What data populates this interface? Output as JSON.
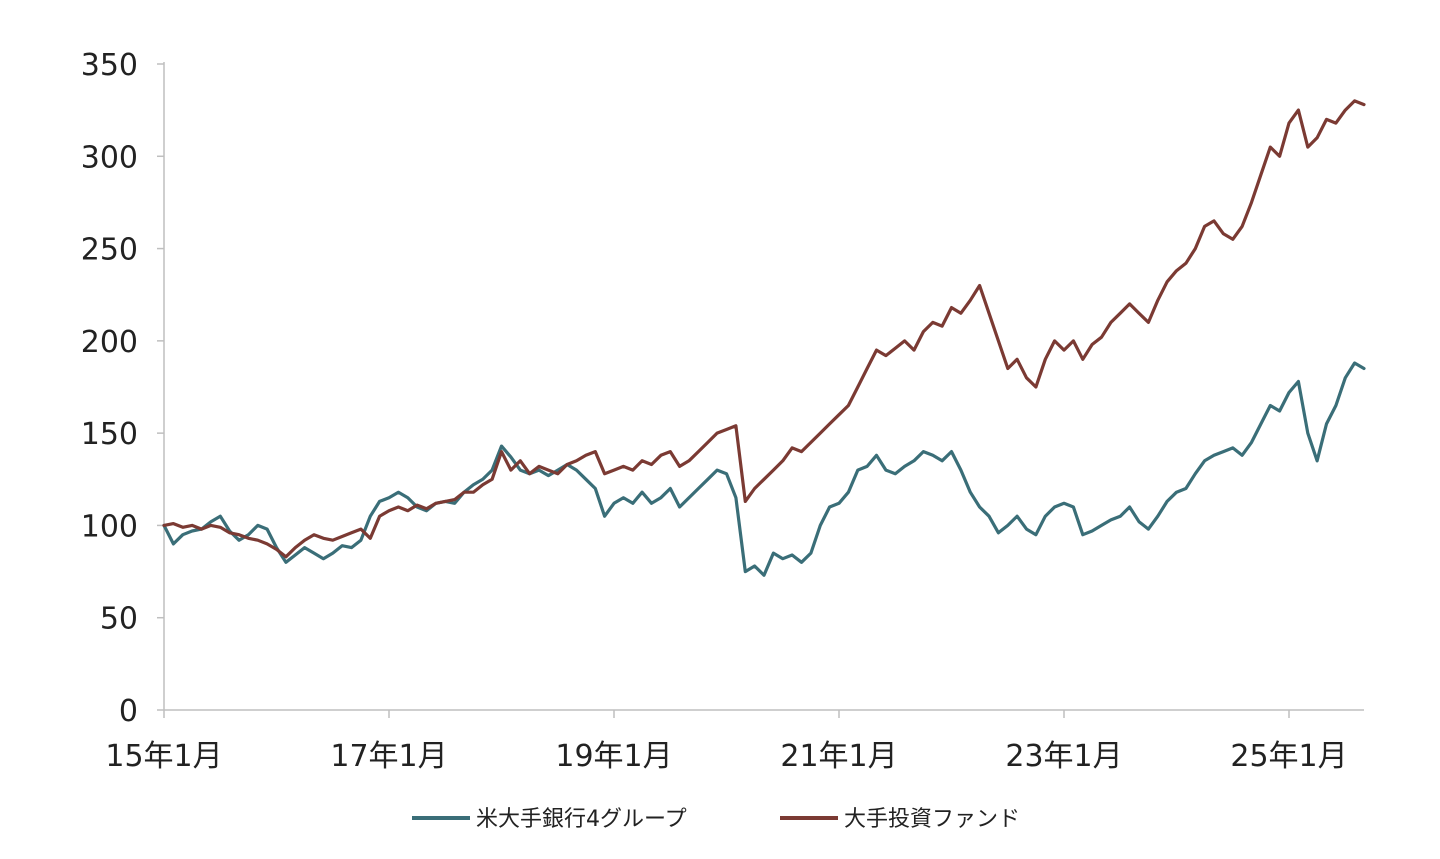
{
  "chart_data": {
    "type": "line",
    "title": "",
    "xlabel": "",
    "ylabel": "",
    "ylim": [
      0,
      350
    ],
    "yticks": [
      0,
      50,
      100,
      150,
      200,
      250,
      300,
      350
    ],
    "xlim": [
      "2015-01",
      "2025-09"
    ],
    "xticks": [
      {
        "date": "2015-01",
        "label": "15年1月"
      },
      {
        "date": "2017-01",
        "label": "17年1月"
      },
      {
        "date": "2019-01",
        "label": "19年1月"
      },
      {
        "date": "2021-01",
        "label": "21年1月"
      },
      {
        "date": "2023-01",
        "label": "23年1月"
      },
      {
        "date": "2025-01",
        "label": "25年1月"
      }
    ],
    "grid": false,
    "legend": "bottom",
    "series": [
      {
        "name": "米大手銀行4グループ",
        "color": "#3a6e78",
        "points": [
          [
            "2015-01",
            100
          ],
          [
            "2015-02",
            90
          ],
          [
            "2015-03",
            95
          ],
          [
            "2015-04",
            97
          ],
          [
            "2015-05",
            98
          ],
          [
            "2015-06",
            102
          ],
          [
            "2015-07",
            105
          ],
          [
            "2015-08",
            97
          ],
          [
            "2015-09",
            92
          ],
          [
            "2015-10",
            95
          ],
          [
            "2015-11",
            100
          ],
          [
            "2015-12",
            98
          ],
          [
            "2016-01",
            88
          ],
          [
            "2016-02",
            80
          ],
          [
            "2016-03",
            84
          ],
          [
            "2016-04",
            88
          ],
          [
            "2016-05",
            85
          ],
          [
            "2016-06",
            82
          ],
          [
            "2016-07",
            85
          ],
          [
            "2016-08",
            89
          ],
          [
            "2016-09",
            88
          ],
          [
            "2016-10",
            92
          ],
          [
            "2016-11",
            105
          ],
          [
            "2016-12",
            113
          ],
          [
            "2017-01",
            115
          ],
          [
            "2017-02",
            118
          ],
          [
            "2017-03",
            115
          ],
          [
            "2017-04",
            110
          ],
          [
            "2017-05",
            108
          ],
          [
            "2017-06",
            112
          ],
          [
            "2017-07",
            113
          ],
          [
            "2017-08",
            112
          ],
          [
            "2017-09",
            118
          ],
          [
            "2017-10",
            122
          ],
          [
            "2017-11",
            125
          ],
          [
            "2017-12",
            130
          ],
          [
            "2018-01",
            143
          ],
          [
            "2018-02",
            137
          ],
          [
            "2018-03",
            130
          ],
          [
            "2018-04",
            128
          ],
          [
            "2018-05",
            130
          ],
          [
            "2018-06",
            127
          ],
          [
            "2018-07",
            130
          ],
          [
            "2018-08",
            133
          ],
          [
            "2018-09",
            130
          ],
          [
            "2018-10",
            125
          ],
          [
            "2018-11",
            120
          ],
          [
            "2018-12",
            105
          ],
          [
            "2019-01",
            112
          ],
          [
            "2019-02",
            115
          ],
          [
            "2019-03",
            112
          ],
          [
            "2019-04",
            118
          ],
          [
            "2019-05",
            112
          ],
          [
            "2019-06",
            115
          ],
          [
            "2019-07",
            120
          ],
          [
            "2019-08",
            110
          ],
          [
            "2019-09",
            115
          ],
          [
            "2019-10",
            120
          ],
          [
            "2019-11",
            125
          ],
          [
            "2019-12",
            130
          ],
          [
            "2020-01",
            128
          ],
          [
            "2020-02",
            115
          ],
          [
            "2020-03",
            75
          ],
          [
            "2020-04",
            78
          ],
          [
            "2020-05",
            73
          ],
          [
            "2020-06",
            85
          ],
          [
            "2020-07",
            82
          ],
          [
            "2020-08",
            84
          ],
          [
            "2020-09",
            80
          ],
          [
            "2020-10",
            85
          ],
          [
            "2020-11",
            100
          ],
          [
            "2020-12",
            110
          ],
          [
            "2021-01",
            112
          ],
          [
            "2021-02",
            118
          ],
          [
            "2021-03",
            130
          ],
          [
            "2021-04",
            132
          ],
          [
            "2021-05",
            138
          ],
          [
            "2021-06",
            130
          ],
          [
            "2021-07",
            128
          ],
          [
            "2021-08",
            132
          ],
          [
            "2021-09",
            135
          ],
          [
            "2021-10",
            140
          ],
          [
            "2021-11",
            138
          ],
          [
            "2021-12",
            135
          ],
          [
            "2022-01",
            140
          ],
          [
            "2022-02",
            130
          ],
          [
            "2022-03",
            118
          ],
          [
            "2022-04",
            110
          ],
          [
            "2022-05",
            105
          ],
          [
            "2022-06",
            96
          ],
          [
            "2022-07",
            100
          ],
          [
            "2022-08",
            105
          ],
          [
            "2022-09",
            98
          ],
          [
            "2022-10",
            95
          ],
          [
            "2022-11",
            105
          ],
          [
            "2022-12",
            110
          ],
          [
            "2023-01",
            112
          ],
          [
            "2023-02",
            110
          ],
          [
            "2023-03",
            95
          ],
          [
            "2023-04",
            97
          ],
          [
            "2023-05",
            100
          ],
          [
            "2023-06",
            103
          ],
          [
            "2023-07",
            105
          ],
          [
            "2023-08",
            110
          ],
          [
            "2023-09",
            102
          ],
          [
            "2023-10",
            98
          ],
          [
            "2023-11",
            105
          ],
          [
            "2023-12",
            113
          ],
          [
            "2024-01",
            118
          ],
          [
            "2024-02",
            120
          ],
          [
            "2024-03",
            128
          ],
          [
            "2024-04",
            135
          ],
          [
            "2024-05",
            138
          ],
          [
            "2024-06",
            140
          ],
          [
            "2024-07",
            142
          ],
          [
            "2024-08",
            138
          ],
          [
            "2024-09",
            145
          ],
          [
            "2024-10",
            155
          ],
          [
            "2024-11",
            165
          ],
          [
            "2024-12",
            162
          ],
          [
            "2025-01",
            172
          ],
          [
            "2025-02",
            178
          ],
          [
            "2025-03",
            150
          ],
          [
            "2025-04",
            135
          ],
          [
            "2025-05",
            155
          ],
          [
            "2025-06",
            165
          ],
          [
            "2025-07",
            180
          ],
          [
            "2025-08",
            188
          ],
          [
            "2025-09",
            185
          ]
        ]
      },
      {
        "name": "大手投資ファンド",
        "color": "#7b3a33",
        "points": [
          [
            "2015-01",
            100
          ],
          [
            "2015-02",
            101
          ],
          [
            "2015-03",
            99
          ],
          [
            "2015-04",
            100
          ],
          [
            "2015-05",
            98
          ],
          [
            "2015-06",
            100
          ],
          [
            "2015-07",
            99
          ],
          [
            "2015-08",
            96
          ],
          [
            "2015-09",
            95
          ],
          [
            "2015-10",
            93
          ],
          [
            "2015-11",
            92
          ],
          [
            "2015-12",
            90
          ],
          [
            "2016-01",
            87
          ],
          [
            "2016-02",
            83
          ],
          [
            "2016-03",
            88
          ],
          [
            "2016-04",
            92
          ],
          [
            "2016-05",
            95
          ],
          [
            "2016-06",
            93
          ],
          [
            "2016-07",
            92
          ],
          [
            "2016-08",
            94
          ],
          [
            "2016-09",
            96
          ],
          [
            "2016-10",
            98
          ],
          [
            "2016-11",
            93
          ],
          [
            "2016-12",
            105
          ],
          [
            "2017-01",
            108
          ],
          [
            "2017-02",
            110
          ],
          [
            "2017-03",
            108
          ],
          [
            "2017-04",
            111
          ],
          [
            "2017-05",
            109
          ],
          [
            "2017-06",
            112
          ],
          [
            "2017-07",
            113
          ],
          [
            "2017-08",
            114
          ],
          [
            "2017-09",
            118
          ],
          [
            "2017-10",
            118
          ],
          [
            "2017-11",
            122
          ],
          [
            "2017-12",
            125
          ],
          [
            "2018-01",
            140
          ],
          [
            "2018-02",
            130
          ],
          [
            "2018-03",
            135
          ],
          [
            "2018-04",
            128
          ],
          [
            "2018-05",
            132
          ],
          [
            "2018-06",
            130
          ],
          [
            "2018-07",
            128
          ],
          [
            "2018-08",
            133
          ],
          [
            "2018-09",
            135
          ],
          [
            "2018-10",
            138
          ],
          [
            "2018-11",
            140
          ],
          [
            "2018-12",
            128
          ],
          [
            "2019-01",
            130
          ],
          [
            "2019-02",
            132
          ],
          [
            "2019-03",
            130
          ],
          [
            "2019-04",
            135
          ],
          [
            "2019-05",
            133
          ],
          [
            "2019-06",
            138
          ],
          [
            "2019-07",
            140
          ],
          [
            "2019-08",
            132
          ],
          [
            "2019-09",
            135
          ],
          [
            "2019-10",
            140
          ],
          [
            "2019-11",
            145
          ],
          [
            "2019-12",
            150
          ],
          [
            "2020-01",
            152
          ],
          [
            "2020-02",
            154
          ],
          [
            "2020-03",
            113
          ],
          [
            "2020-04",
            120
          ],
          [
            "2020-05",
            125
          ],
          [
            "2020-06",
            130
          ],
          [
            "2020-07",
            135
          ],
          [
            "2020-08",
            142
          ],
          [
            "2020-09",
            140
          ],
          [
            "2020-10",
            145
          ],
          [
            "2020-11",
            150
          ],
          [
            "2020-12",
            155
          ],
          [
            "2021-01",
            160
          ],
          [
            "2021-02",
            165
          ],
          [
            "2021-03",
            175
          ],
          [
            "2021-04",
            185
          ],
          [
            "2021-05",
            195
          ],
          [
            "2021-06",
            192
          ],
          [
            "2021-07",
            196
          ],
          [
            "2021-08",
            200
          ],
          [
            "2021-09",
            195
          ],
          [
            "2021-10",
            205
          ],
          [
            "2021-11",
            210
          ],
          [
            "2021-12",
            208
          ],
          [
            "2022-01",
            218
          ],
          [
            "2022-02",
            215
          ],
          [
            "2022-03",
            222
          ],
          [
            "2022-04",
            230
          ],
          [
            "2022-05",
            215
          ],
          [
            "2022-06",
            200
          ],
          [
            "2022-07",
            185
          ],
          [
            "2022-08",
            190
          ],
          [
            "2022-09",
            180
          ],
          [
            "2022-10",
            175
          ],
          [
            "2022-11",
            190
          ],
          [
            "2022-12",
            200
          ],
          [
            "2023-01",
            195
          ],
          [
            "2023-02",
            200
          ],
          [
            "2023-03",
            190
          ],
          [
            "2023-04",
            198
          ],
          [
            "2023-05",
            202
          ],
          [
            "2023-06",
            210
          ],
          [
            "2023-07",
            215
          ],
          [
            "2023-08",
            220
          ],
          [
            "2023-09",
            215
          ],
          [
            "2023-10",
            210
          ],
          [
            "2023-11",
            222
          ],
          [
            "2023-12",
            232
          ],
          [
            "2024-01",
            238
          ],
          [
            "2024-02",
            242
          ],
          [
            "2024-03",
            250
          ],
          [
            "2024-04",
            262
          ],
          [
            "2024-05",
            265
          ],
          [
            "2024-06",
            258
          ],
          [
            "2024-07",
            255
          ],
          [
            "2024-08",
            262
          ],
          [
            "2024-09",
            275
          ],
          [
            "2024-10",
            290
          ],
          [
            "2024-11",
            305
          ],
          [
            "2024-12",
            300
          ],
          [
            "2025-01",
            318
          ],
          [
            "2025-02",
            325
          ],
          [
            "2025-03",
            305
          ],
          [
            "2025-04",
            310
          ],
          [
            "2025-05",
            320
          ],
          [
            "2025-06",
            318
          ],
          [
            "2025-07",
            325
          ],
          [
            "2025-08",
            330
          ],
          [
            "2025-09",
            328
          ]
        ]
      }
    ]
  }
}
